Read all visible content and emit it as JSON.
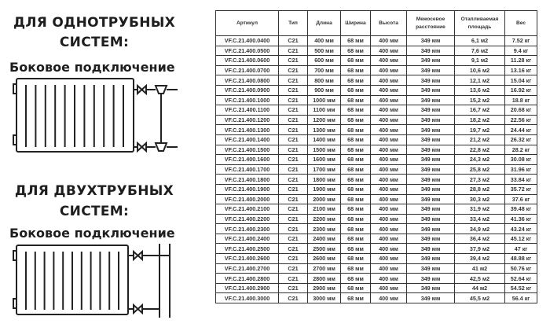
{
  "one_pipe": {
    "title_line1": "ДЛЯ ОДНОТРУБНЫХ",
    "title_line2": "СИСТЕМ:",
    "subtitle": "Боковое подключение"
  },
  "two_pipe": {
    "title_line1": "ДЛЯ ДВУХТРУБНЫХ",
    "title_line2": "СИСТЕМ:",
    "subtitle": "Боковое подключение"
  },
  "table": {
    "headers": [
      "Артикул",
      "Тип",
      "Длина",
      "Ширина",
      "Высота",
      "Межосевое расстояние",
      "Отапливаемая площадь",
      "Вес"
    ],
    "rows": [
      [
        "VF.C.21.400.0400",
        "C21",
        "400 мм",
        "68 мм",
        "400 мм",
        "349 мм",
        "6,1 м2",
        "7.52 кг"
      ],
      [
        "VF.C.21.400.0500",
        "C21",
        "500 мм",
        "68 мм",
        "400 мм",
        "349 мм",
        "7,6 м2",
        "9.4 кг"
      ],
      [
        "VF.C.21.400.0600",
        "C21",
        "600 мм",
        "68 мм",
        "400 мм",
        "349 мм",
        "9,1 м2",
        "11.28 кг"
      ],
      [
        "VF.C.21.400.0700",
        "C21",
        "700 мм",
        "68 мм",
        "400 мм",
        "349 мм",
        "10,6 м2",
        "13.16 кг"
      ],
      [
        "VF.C.21.400.0800",
        "C21",
        "800 мм",
        "68 мм",
        "400 мм",
        "349 мм",
        "12,1 м2",
        "15.04 кг"
      ],
      [
        "VF.C.21.400.0900",
        "C21",
        "900 мм",
        "68 мм",
        "400 мм",
        "349 мм",
        "13,6 м2",
        "16.92 кг"
      ],
      [
        "VF.C.21.400.1000",
        "C21",
        "1000 мм",
        "68 мм",
        "400 мм",
        "349 мм",
        "15,2 м2",
        "18.8 кг"
      ],
      [
        "VF.C.21.400.1100",
        "C21",
        "1100 мм",
        "68 мм",
        "400 мм",
        "349 мм",
        "16,7 м2",
        "20.68 кг"
      ],
      [
        "VF.C.21.400.1200",
        "C21",
        "1200 мм",
        "68 мм",
        "400 мм",
        "349 мм",
        "18,2 м2",
        "22.56 кг"
      ],
      [
        "VF.C.21.400.1300",
        "C21",
        "1300 мм",
        "68 мм",
        "400 мм",
        "349 мм",
        "19,7 м2",
        "24.44 кг"
      ],
      [
        "VF.C.21.400.1400",
        "C21",
        "1400 мм",
        "68 мм",
        "400 мм",
        "349 мм",
        "21,2 м2",
        "26.32 кг"
      ],
      [
        "VF.C.21.400.1500",
        "C21",
        "1500 мм",
        "68 мм",
        "400 мм",
        "349 мм",
        "22,8 м2",
        "28.2 кг"
      ],
      [
        "VF.C.21.400.1600",
        "C21",
        "1600 мм",
        "68 мм",
        "400 мм",
        "349 мм",
        "24,3 м2",
        "30.08 кг"
      ],
      [
        "VF.C.21.400.1700",
        "C21",
        "1700 мм",
        "68 мм",
        "400 мм",
        "349 мм",
        "25,8 м2",
        "31.96 кг"
      ],
      [
        "VF.C.21.400.1800",
        "C21",
        "1800 мм",
        "68 мм",
        "400 мм",
        "349 мм",
        "27,3 м2",
        "33.84 кг"
      ],
      [
        "VF.C.21.400.1900",
        "C21",
        "1900 мм",
        "68 мм",
        "400 мм",
        "349 мм",
        "28,8 м2",
        "35.72 кг"
      ],
      [
        "VF.C.21.400.2000",
        "C21",
        "2000 мм",
        "68 мм",
        "400 мм",
        "349 мм",
        "30,3 м2",
        "37.6 кг"
      ],
      [
        "VF.C.21.400.2100",
        "C21",
        "2100 мм",
        "68 мм",
        "400 мм",
        "349 мм",
        "31,9 м2",
        "39.48 кг"
      ],
      [
        "VF.C.21.400.2200",
        "C21",
        "2200 мм",
        "68 мм",
        "400 мм",
        "349 мм",
        "33,4 м2",
        "41.36 кг"
      ],
      [
        "VF.C.21.400.2300",
        "C21",
        "2300 мм",
        "68 мм",
        "400 мм",
        "349 мм",
        "34,9 м2",
        "43.24 кг"
      ],
      [
        "VF.C.21.400.2400",
        "C21",
        "2400 мм",
        "68 мм",
        "400 мм",
        "349 мм",
        "36,4 м2",
        "45.12 кг"
      ],
      [
        "VF.C.21.400.2500",
        "C21",
        "2500 мм",
        "68 мм",
        "400 мм",
        "349 мм",
        "37,9 м2",
        "47 кг"
      ],
      [
        "VF.C.21.400.2600",
        "C21",
        "2600 мм",
        "68 мм",
        "400 мм",
        "349 мм",
        "39,4 м2",
        "48.88 кг"
      ],
      [
        "VF.C.21.400.2700",
        "C21",
        "2700 мм",
        "68 мм",
        "400 мм",
        "349 мм",
        "41 м2",
        "50.76 кг"
      ],
      [
        "VF.C.21.400.2800",
        "C21",
        "2800 мм",
        "68 мм",
        "400 мм",
        "349 мм",
        "42,5 м2",
        "52.64 кг"
      ],
      [
        "VF.C.21.400.2900",
        "C21",
        "2900 мм",
        "68 мм",
        "400 мм",
        "349 мм",
        "44 м2",
        "54.52 кг"
      ],
      [
        "VF.C.21.400.3000",
        "C21",
        "3000 мм",
        "68 мм",
        "400 мм",
        "349 мм",
        "45,5 м2",
        "56.4 кг"
      ]
    ]
  }
}
